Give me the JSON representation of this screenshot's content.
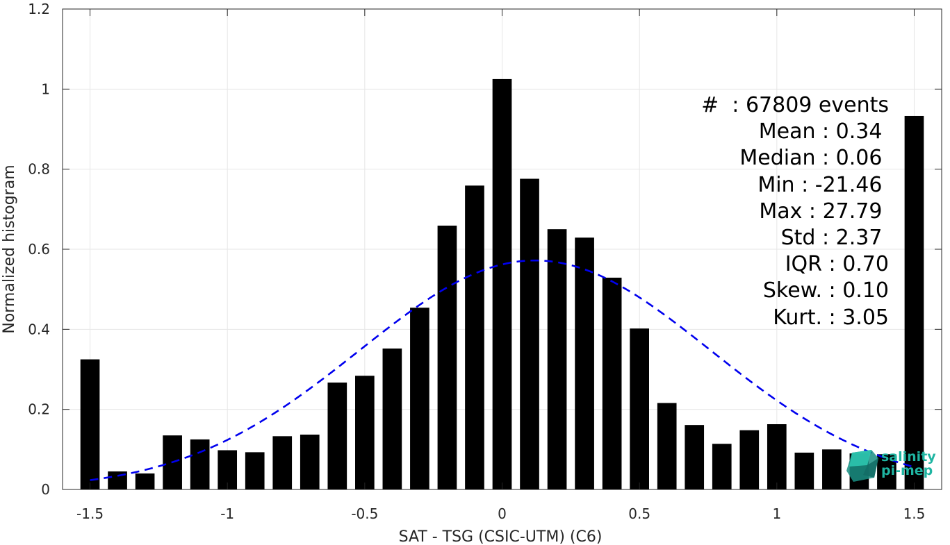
{
  "chart_data": {
    "type": "bar",
    "xlabel": "SAT - TSG (CSIC-UTM) (C6)",
    "ylabel": "Normalized histogram",
    "xlim": [
      -1.6,
      1.6
    ],
    "ylim": [
      0,
      1.2
    ],
    "xticks": [
      -1.5,
      -1,
      -0.5,
      0,
      0.5,
      1,
      1.5
    ],
    "xtick_labels": [
      "-1.5",
      "-1",
      "-0.5",
      "0",
      "0.5",
      "1",
      "1.5"
    ],
    "yticks": [
      0,
      0.2,
      0.4,
      0.6,
      0.8,
      1.0,
      1.2
    ],
    "ytick_labels": [
      "0",
      "0.2",
      "0.4",
      "0.6",
      "0.8",
      "1",
      "1.2"
    ],
    "grid": true,
    "bar_color": "#000000",
    "fit_color": "#0000ee",
    "bars": {
      "x": [
        -1.5,
        -1.4,
        -1.3,
        -1.2,
        -1.1,
        -1.0,
        -0.9,
        -0.8,
        -0.7,
        -0.6,
        -0.5,
        -0.4,
        -0.3,
        -0.2,
        -0.1,
        0.0,
        0.1,
        0.2,
        0.3,
        0.4,
        0.5,
        0.6,
        0.7,
        0.8,
        0.9,
        1.0,
        1.1,
        1.2,
        1.3,
        1.4,
        1.5
      ],
      "values": [
        0.325,
        0.045,
        0.04,
        0.135,
        0.125,
        0.098,
        0.093,
        0.133,
        0.137,
        0.267,
        0.284,
        0.352,
        0.454,
        0.659,
        0.759,
        1.025,
        0.776,
        0.65,
        0.629,
        0.529,
        0.402,
        0.216,
        0.161,
        0.114,
        0.148,
        0.163,
        0.092,
        0.1,
        0.09,
        0.088,
        0.933
      ]
    },
    "fit": {
      "style": "dashed",
      "mean": 0.12,
      "peak": 0.572,
      "sigma": 0.64,
      "x_range": [
        -1.5,
        1.5
      ]
    },
    "annotation_lines": [
      "#  : 67809 events",
      "Mean : 0.34 ",
      "Median : 0.06 ",
      "Min : -21.46 ",
      "Max : 27.79 ",
      "Std : 2.37 ",
      "IQR : 0.70",
      "Skew. : 0.10",
      "Kurt. : 3.05"
    ]
  },
  "logo": {
    "line1": "salinity",
    "line2": "pi-mep",
    "color": "#1fb5a2"
  }
}
